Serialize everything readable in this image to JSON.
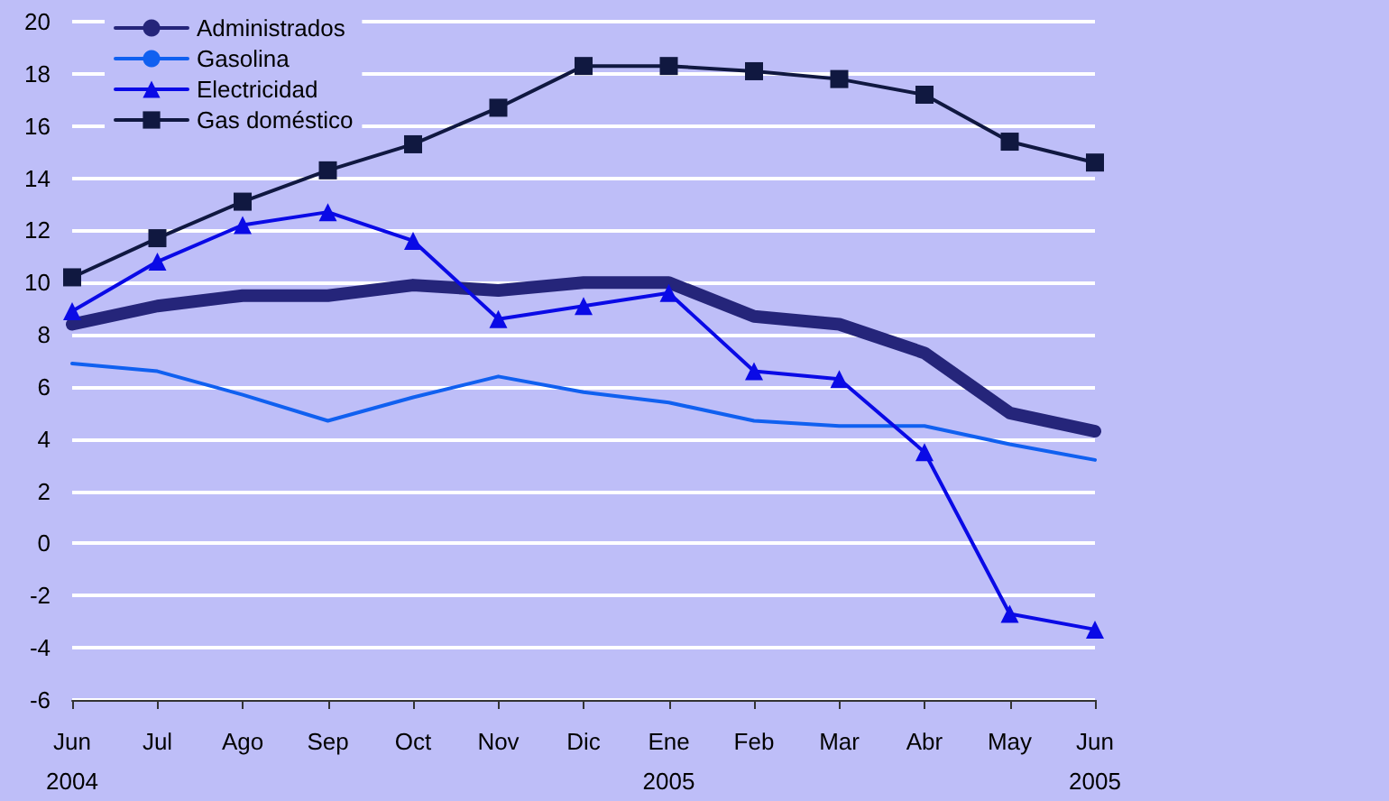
{
  "chart_data": {
    "type": "line",
    "categories": [
      "Jun\n2004",
      "Jul",
      "Ago",
      "Sep",
      "Oct",
      "Nov",
      "Dic",
      "Ene\n2005",
      "Feb",
      "Mar",
      "Abr",
      "May",
      "Jun\n2005"
    ],
    "series": [
      {
        "name": "Administrados",
        "color": "#25257a",
        "marker": "none",
        "values": [
          8.4,
          9.1,
          9.5,
          9.5,
          9.9,
          9.7,
          10.0,
          10.0,
          8.7,
          8.4,
          7.3,
          5.0,
          4.3
        ]
      },
      {
        "name": "Gasolina",
        "color": "#1060f0",
        "marker": "none",
        "values": [
          6.9,
          6.6,
          5.7,
          4.7,
          5.6,
          6.4,
          5.8,
          5.4,
          4.7,
          4.5,
          4.5,
          3.8,
          3.2
        ]
      },
      {
        "name": "Electricidad",
        "color": "#0a0ae6",
        "marker": "triangle",
        "values": [
          8.9,
          10.8,
          12.2,
          12.7,
          11.6,
          8.6,
          9.1,
          9.6,
          6.6,
          6.3,
          3.5,
          -2.7,
          -3.3
        ]
      },
      {
        "name": "Gas doméstico",
        "color": "#101840",
        "marker": "square",
        "values": [
          10.2,
          11.7,
          13.1,
          14.3,
          15.3,
          16.7,
          18.3,
          18.3,
          18.1,
          17.8,
          17.2,
          15.4,
          14.6
        ]
      }
    ],
    "ylim": [
      -6,
      20
    ],
    "yticks": [
      -6,
      -4,
      -2,
      0,
      2,
      4,
      6,
      8,
      10,
      12,
      14,
      16,
      18,
      20
    ],
    "grid": "y",
    "legend": "top left",
    "line_style": "solid"
  }
}
